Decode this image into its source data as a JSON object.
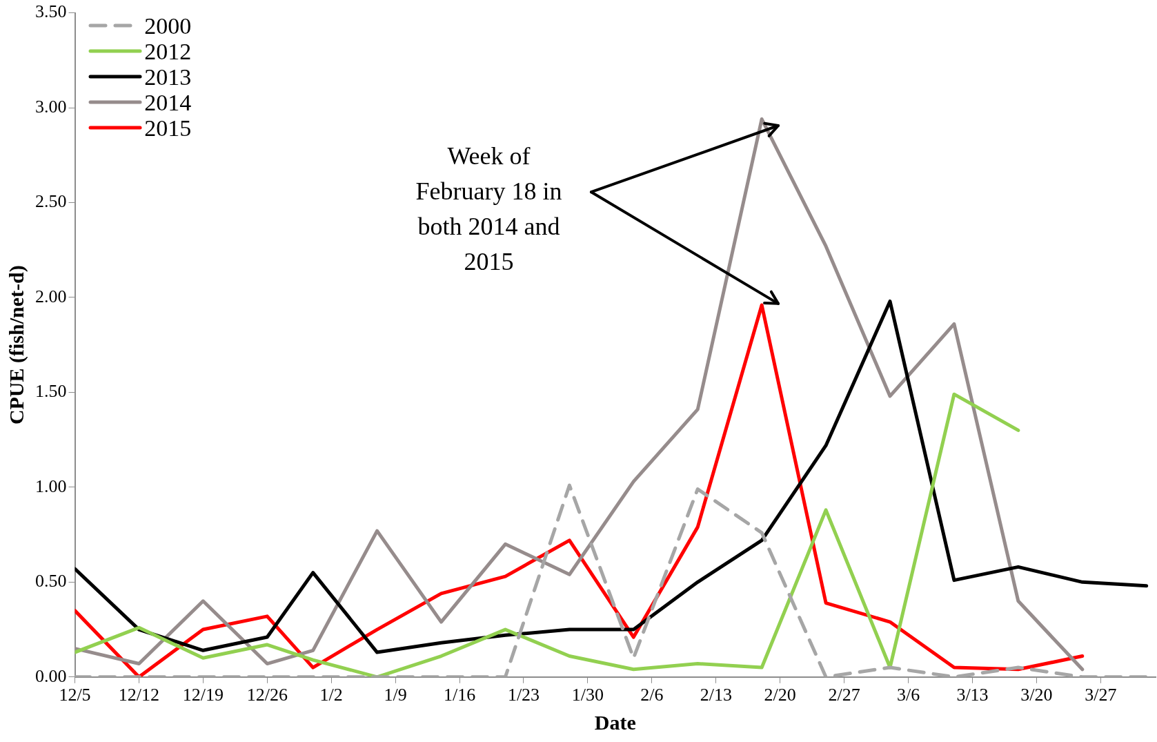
{
  "chart_data": {
    "type": "line",
    "xlabel": "Date",
    "ylabel": "CPUE (fish/net-d)",
    "x": [
      "2000-12-05",
      "2000-12-12",
      "2000-12-19",
      "2000-12-26",
      "2000-12-31",
      "2001-01-07",
      "2001-01-14",
      "2001-01-21",
      "2001-01-28",
      "2001-02-04",
      "2001-02-11",
      "2001-02-18",
      "2001-02-25",
      "2001-03-04",
      "2001-03-11",
      "2001-03-18",
      "2001-03-25",
      "2001-04-01"
    ],
    "xlim": [
      "2000-12-05",
      "2001-04-02"
    ],
    "xticks": [
      {
        "value": "2000-12-05",
        "label": "12/5"
      },
      {
        "value": "2000-12-12",
        "label": "12/12"
      },
      {
        "value": "2000-12-19",
        "label": "12/19"
      },
      {
        "value": "2000-12-26",
        "label": "12/26"
      },
      {
        "value": "2001-01-02",
        "label": "1/2"
      },
      {
        "value": "2001-01-09",
        "label": "1/9"
      },
      {
        "value": "2001-01-16",
        "label": "1/16"
      },
      {
        "value": "2001-01-23",
        "label": "1/23"
      },
      {
        "value": "2001-01-30",
        "label": "1/30"
      },
      {
        "value": "2001-02-06",
        "label": "2/6"
      },
      {
        "value": "2001-02-13",
        "label": "2/13"
      },
      {
        "value": "2001-02-20",
        "label": "2/20"
      },
      {
        "value": "2001-02-27",
        "label": "2/27"
      },
      {
        "value": "2001-03-06",
        "label": "3/6"
      },
      {
        "value": "2001-03-13",
        "label": "3/13"
      },
      {
        "value": "2001-03-20",
        "label": "3/20"
      },
      {
        "value": "2001-03-27",
        "label": "3/27"
      }
    ],
    "ylim": [
      0,
      3.5
    ],
    "yticks": [
      {
        "value": 0,
        "label": "0.00"
      },
      {
        "value": 0.5,
        "label": "0.50"
      },
      {
        "value": 1,
        "label": "1.00"
      },
      {
        "value": 1.5,
        "label": "1.50"
      },
      {
        "value": 2,
        "label": "2.00"
      },
      {
        "value": 2.5,
        "label": "2.50"
      },
      {
        "value": 3,
        "label": "3.00"
      },
      {
        "value": 3.5,
        "label": "3.50"
      }
    ],
    "grid": false,
    "legend": "top left",
    "marker": "none",
    "annotations": [
      "Week of February 18 in both 2014 and 2015"
    ],
    "series": [
      {
        "name": "2000",
        "color": "#a6a6a6",
        "line_style": "dashed",
        "values": [
          0,
          0,
          0,
          0,
          0,
          0,
          0,
          0,
          1.01,
          0.1,
          0.99,
          0.76,
          0,
          0.05,
          0,
          0.05,
          0,
          0
        ]
      },
      {
        "name": "2012",
        "color": "#92d050",
        "values": [
          0.13,
          0.26,
          0.1,
          0.17,
          0.09,
          0,
          0.11,
          0.25,
          0.11,
          0.04,
          0.07,
          0.05,
          0.88,
          0.05,
          1.49,
          1.3,
          null,
          null
        ]
      },
      {
        "name": "2013",
        "color": "#000000",
        "values": [
          0.57,
          0.25,
          0.14,
          0.21,
          0.55,
          0.13,
          0.18,
          0.22,
          0.25,
          0.25,
          0.5,
          0.72,
          1.22,
          1.98,
          0.51,
          0.58,
          0.5,
          0.48
        ]
      },
      {
        "name": "2014",
        "color": "#968c8c",
        "values": [
          0.15,
          0.07,
          0.4,
          0.07,
          0.14,
          0.77,
          0.29,
          0.7,
          0.54,
          1.03,
          1.41,
          2.94,
          2.27,
          1.48,
          1.86,
          0.4,
          0.04,
          null
        ]
      },
      {
        "name": "2015",
        "color": "#ff0000",
        "values": [
          0.35,
          0,
          0.25,
          0.32,
          0.05,
          0.25,
          0.44,
          0.53,
          0.72,
          0.21,
          0.79,
          1.96,
          0.39,
          0.29,
          0.05,
          0.04,
          0.11,
          null
        ]
      }
    ]
  }
}
